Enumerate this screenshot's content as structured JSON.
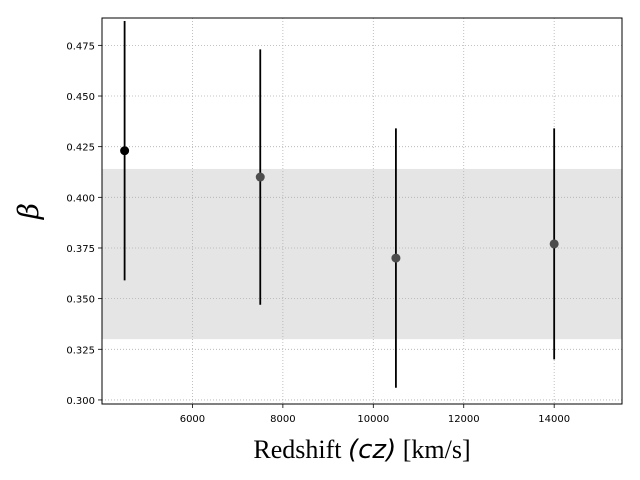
{
  "chart_data": {
    "type": "scatter",
    "title": "",
    "xlabel_prefix": "Redshift ",
    "xlabel_math": "(cz)",
    "xlabel_suffix": " [km/s]",
    "ylabel": "β",
    "xlim": [
      4000,
      15500
    ],
    "ylim": [
      0.298,
      0.4885
    ],
    "grid": true,
    "x_ticks": [
      6000,
      8000,
      10000,
      12000,
      14000
    ],
    "x_tick_labels": [
      "6000",
      "8000",
      "10000",
      "12000",
      "14000"
    ],
    "y_ticks": [
      0.3,
      0.325,
      0.35,
      0.375,
      0.4,
      0.425,
      0.45,
      0.475
    ],
    "y_tick_labels": [
      "0.300",
      "0.325",
      "0.350",
      "0.375",
      "0.400",
      "0.425",
      "0.450",
      "0.475"
    ],
    "band": {
      "ymin": 0.33,
      "ymax": 0.414,
      "color": "#e5e5e5"
    },
    "series": [
      {
        "points": [
          {
            "x": 4500,
            "y": 0.423,
            "ylow": 0.359,
            "yhigh": 0.487,
            "color": "#000000"
          },
          {
            "x": 7500,
            "y": 0.41,
            "ylow": 0.347,
            "yhigh": 0.473,
            "color": "#4d4d4d"
          },
          {
            "x": 10500,
            "y": 0.37,
            "ylow": 0.306,
            "yhigh": 0.434,
            "color": "#4d4d4d"
          },
          {
            "x": 14000,
            "y": 0.377,
            "ylow": 0.32,
            "yhigh": 0.434,
            "color": "#4d4d4d"
          }
        ]
      }
    ]
  }
}
